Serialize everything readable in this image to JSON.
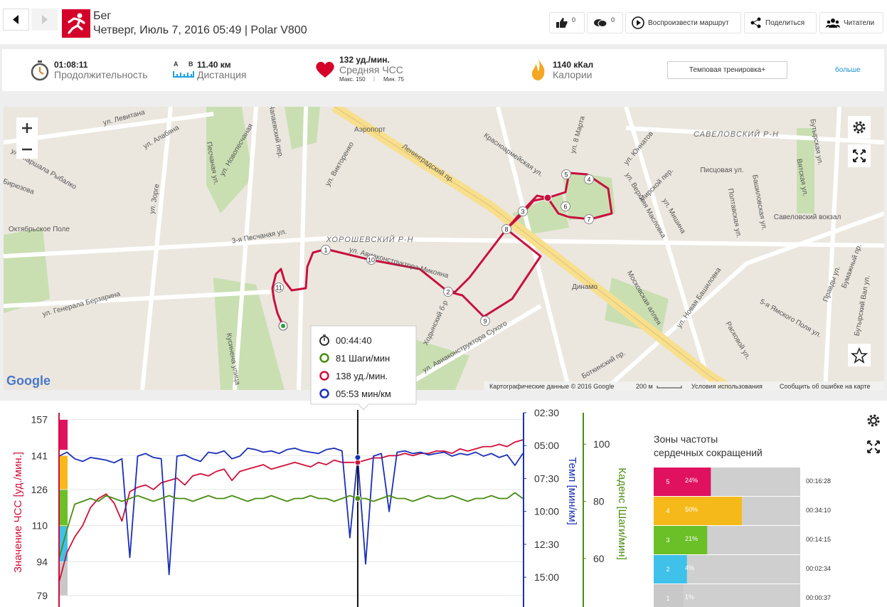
{
  "header": {
    "sport": "Бег",
    "subtitle": "Четверг, Июль 7, 2016 05:49 | Polar V800",
    "likes": 0,
    "comments": 0,
    "buttons": [
      "Воспроизвести маршрут",
      "Поделиться",
      "Читатели"
    ]
  },
  "summary": {
    "duration": {
      "value": "01:08:11",
      "label": "Продолжительность"
    },
    "distance": {
      "a": "A",
      "b": "B",
      "value": "11.40 км",
      "label": "Дистанция"
    },
    "heart_rate": {
      "value": "132 уд./мин.",
      "label": "Средняя ЧСС",
      "max": "Макс. 150",
      "min": "Мин. 75"
    },
    "calories": {
      "value": "1140 кКал",
      "label": "Калории"
    },
    "training_button": "Темповая тренировка+",
    "more": "больше"
  },
  "map": {
    "labels": [
      "ул. Левитана",
      "ул. Алабяна",
      "Песчаная ул.",
      "ул. Новопесчаная",
      "Чапаевский пер.",
      "Аэропорт",
      "ул. Викторенко",
      "Ленинградский пр.",
      "Красноармейская ул.",
      "ул. Юннатов",
      "САВЕЛОВСКИЙ Р-Н",
      "Писцовая ул.",
      "Мирской пер.",
      "Савеловский вокзал",
      "Башиловская ул.",
      "Полтавская ул.",
      "ул. Зорге",
      "3-я Песчаная ул.",
      "ХОРОШЕВСКИЙ Р-Н",
      "ул. Авиаконструктора Микояна",
      "Динамо",
      "Московская аллея",
      "ул. Новая Башиловка",
      "ул. Генерала Берзарина",
      "Кусинена улица",
      "Ходынский б-р",
      "ул. Авиаконструктора Сухого",
      "Боткинский пр.",
      "Расковой ул.",
      "Правды ул.",
      "5-я Ямского Поля ул.",
      "Бумажный пр.",
      "Бутырский Вал ул.",
      "ул. Верхняя Масловка",
      "ул. Мишина",
      "Октябрьское Поле",
      "ул. Маршала Рыбалко",
      "Бирюзова",
      "ул. 8 Марта",
      "Вятская ул.",
      "Бутырская ул."
    ],
    "route_markers": [
      "1",
      "2",
      "3",
      "4",
      "5",
      "6",
      "7",
      "8",
      "9",
      "10",
      "11"
    ],
    "logo": "Google",
    "footer": [
      "Картографические данные © 2016 Google",
      "200 м",
      "Условия использования",
      "Сообщить об ошибке на карте"
    ]
  },
  "tooltip": {
    "time": "00:44:40",
    "cadence": "81 Шаги/мин",
    "heart_rate": "138 уд./мин.",
    "pace": "05:53 мин/км"
  },
  "chart": {
    "type": "line",
    "y_label": "Значение ЧСС [уд./мин.]",
    "y2_label": "Темп [мин/км]",
    "y3_label": "Каденс [Шаги/мин]",
    "ylim": [
      79,
      160
    ],
    "yticks": [
      157,
      141,
      126,
      110,
      94,
      79
    ],
    "y2lim": [
      2.5,
      16.4
    ],
    "y2ticks": [
      {
        "value": 2.5,
        "label": "02:30"
      },
      {
        "value": 5,
        "label": "05:00"
      },
      {
        "value": 7.5,
        "label": "07:30"
      },
      {
        "value": 10,
        "label": "10:00"
      },
      {
        "value": 12.5,
        "label": "12:30"
      },
      {
        "value": 15,
        "label": "15:00"
      }
    ],
    "y3lim": [
      47,
      111
    ],
    "y3ticks": [
      100,
      80,
      60
    ],
    "grid": true,
    "series": [
      {
        "color": "#d0103a",
        "axis": "y",
        "values": [
          85,
          98,
          105,
          110,
          118,
          122,
          124,
          120,
          112,
          125,
          127,
          128,
          126,
          129,
          130,
          131,
          128,
          132,
          133,
          132,
          134,
          135,
          130,
          134,
          135,
          136,
          137,
          135,
          136,
          137,
          138,
          137,
          136,
          138,
          137,
          139,
          138,
          138,
          138,
          139,
          140,
          140,
          141,
          141,
          142,
          141,
          142,
          142,
          143,
          143,
          142,
          144,
          143,
          144,
          145,
          145,
          146,
          145,
          147,
          148
        ]
      },
      {
        "color": "#1a2fb8",
        "axis": "y2",
        "values": [
          5.8,
          5.5,
          6.0,
          6.2,
          5.9,
          6.0,
          6.1,
          6.3,
          6.0,
          13.5,
          5.8,
          5.6,
          5.9,
          6.0,
          14.8,
          5.8,
          5.7,
          6.0,
          6.2,
          5.5,
          5.6,
          5.4,
          6.0,
          5.8,
          5.2,
          5.3,
          5.5,
          5.4,
          5.6,
          5.3,
          5.2,
          5.4,
          5.5,
          5.6,
          5.3,
          5.2,
          5.4,
          12.0,
          5.9,
          14.0,
          5.8,
          5.6,
          10.0,
          5.5,
          5.4,
          5.6,
          5.5,
          5.7,
          5.6,
          5.5,
          5.8,
          5.6,
          5.7,
          5.5,
          5.8,
          5.6,
          5.9,
          5.7,
          6.5,
          5.6
        ]
      },
      {
        "color": "#4a8c12",
        "axis": "y3",
        "values": [
          60,
          70,
          79,
          80,
          81,
          80,
          82,
          81,
          80,
          81,
          82,
          81,
          80,
          81,
          82,
          81,
          81,
          80,
          81,
          82,
          81,
          81,
          82,
          81,
          80,
          81,
          81,
          82,
          81,
          80,
          81,
          81,
          82,
          81,
          81,
          80,
          81,
          82,
          81,
          81,
          80,
          81,
          82,
          81,
          81,
          80,
          81,
          82,
          81,
          81,
          82,
          81,
          80,
          81,
          81,
          82,
          81,
          81,
          83,
          81
        ]
      }
    ]
  },
  "zones": {
    "title": "Зоны частоты сердечных сокращений",
    "rows": [
      {
        "zone": 5,
        "percent": 24,
        "percent_label": "24%",
        "time": "00:16:28",
        "color": "#e0115f"
      },
      {
        "zone": 4,
        "percent": 50,
        "percent_label": "50%",
        "time": "00:34:10",
        "color": "#f5b91a"
      },
      {
        "zone": 3,
        "percent": 21,
        "percent_label": "21%",
        "time": "00:14:15",
        "color": "#6bbf27"
      },
      {
        "zone": 2,
        "percent": 4,
        "percent_label": "4%",
        "time": "00:02:34",
        "color": "#3fc1e9"
      },
      {
        "zone": 1,
        "percent": 1,
        "percent_label": "1%",
        "time": "00:00:37",
        "color": "#c8c8c8"
      }
    ]
  }
}
